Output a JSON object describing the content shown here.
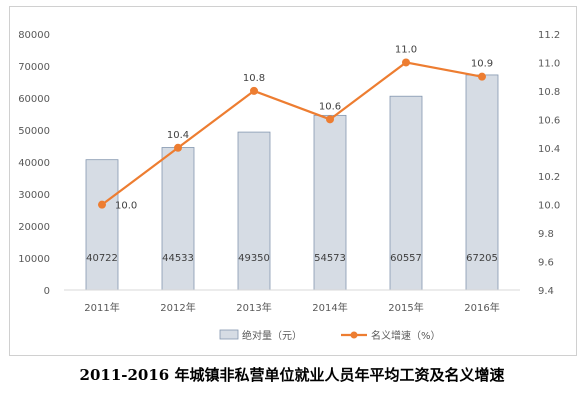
{
  "chart_data": {
    "type": "bar+line",
    "title": "2011-2016 年城镇非私营单位就业人员年平均工资及名义增速",
    "categories": [
      "2011年",
      "2012年",
      "2013年",
      "2014年",
      "2015年",
      "2016年"
    ],
    "series": [
      {
        "name": "绝对量（元）",
        "type": "bar",
        "axis": "left",
        "values": [
          40722,
          44533,
          49350,
          54573,
          60557,
          67205
        ],
        "labels": [
          "40722",
          "44533",
          "49350",
          "54573",
          "60557",
          "67205"
        ]
      },
      {
        "name": "名义增速（%）",
        "type": "line",
        "axis": "right",
        "values": [
          10.0,
          10.4,
          10.8,
          10.6,
          11.0,
          10.9
        ],
        "labels": [
          "10.0",
          "10.4",
          "10.8",
          "10.6",
          "11.0",
          "10.9"
        ]
      }
    ],
    "left_axis": {
      "ylim": [
        0,
        80000
      ],
      "ticks": [
        "0",
        "10000",
        "20000",
        "30000",
        "40000",
        "50000",
        "60000",
        "70000",
        "80000"
      ]
    },
    "right_axis": {
      "ylim": [
        9.4,
        11.2
      ],
      "ticks": [
        "9.4",
        "9.6",
        "9.8",
        "10.0",
        "10.2",
        "10.4",
        "10.6",
        "10.8",
        "11.0",
        "11.2"
      ]
    },
    "grid": false,
    "legend": "bottom",
    "colors": {
      "bar_fill": "#d6dce4",
      "bar_stroke": "#8497b0",
      "line": "#ed7d31",
      "axis": "#d9d9d9"
    }
  }
}
